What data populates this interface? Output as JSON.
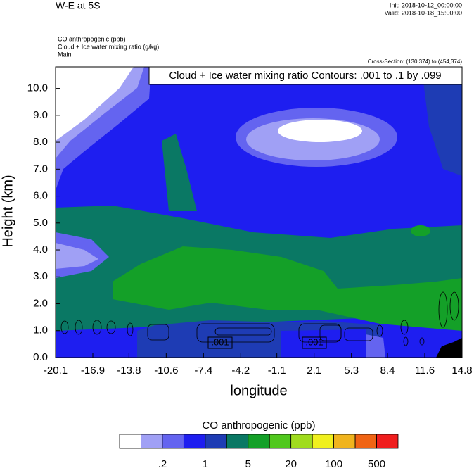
{
  "chart_data": {
    "type": "contour",
    "title": "W-E at 5S",
    "init": "Init: 2018-10-12_00:00:00",
    "valid": "Valid: 2018-10-18_15:00:00",
    "fields": [
      "CO anthropogenic   (ppb)",
      "Cloud + Ice water mixing ratio   (g/kg)",
      "Main"
    ],
    "cross_section": "Cross-Section: (130,374) to (454,374)",
    "contour_info": "Cloud + Ice water mixing ratio Contours: .001 to .1 by .099",
    "contour_labels": [
      ".001",
      ".001"
    ],
    "x_label": "longitude",
    "y_label": "Height (km)",
    "xlim": [
      -20.1,
      14.8
    ],
    "xticks": [
      -20.1,
      -16.9,
      -13.8,
      -10.6,
      -7.4,
      -4.2,
      -1.1,
      2.1,
      5.3,
      8.4,
      11.6,
      14.8
    ],
    "ylim": [
      0,
      10.8
    ],
    "yticks": [
      {
        "value": 0,
        "label": "0.0"
      },
      {
        "value": 1,
        "label": "1.0"
      },
      {
        "value": 2,
        "label": "2.0"
      },
      {
        "value": 3,
        "label": "3.0"
      },
      {
        "value": 4,
        "label": "4.0"
      },
      {
        "value": 5,
        "label": "5.0"
      },
      {
        "value": 6,
        "label": "6.0"
      },
      {
        "value": 7,
        "label": "7.0"
      },
      {
        "value": 8,
        "label": "8.0"
      },
      {
        "value": 9,
        "label": "9.0"
      },
      {
        "value": 10,
        "label": "10.0"
      }
    ],
    "colorbar_title": "CO anthropogenic  (ppb)",
    "colorbar_colors": [
      "#ffffff",
      "#a0a0f5",
      "#6464f0",
      "#1e1ef0",
      "#1e3cb4",
      "#0a7864",
      "#14a028",
      "#50c81e",
      "#a0dc1e",
      "#f0f01e",
      "#f0b41e",
      "#f06414",
      "#f01e1e"
    ],
    "colorbar_ticks": [
      {
        "value": 0.2,
        "label": ".2"
      },
      1,
      5,
      20,
      100,
      500
    ]
  }
}
